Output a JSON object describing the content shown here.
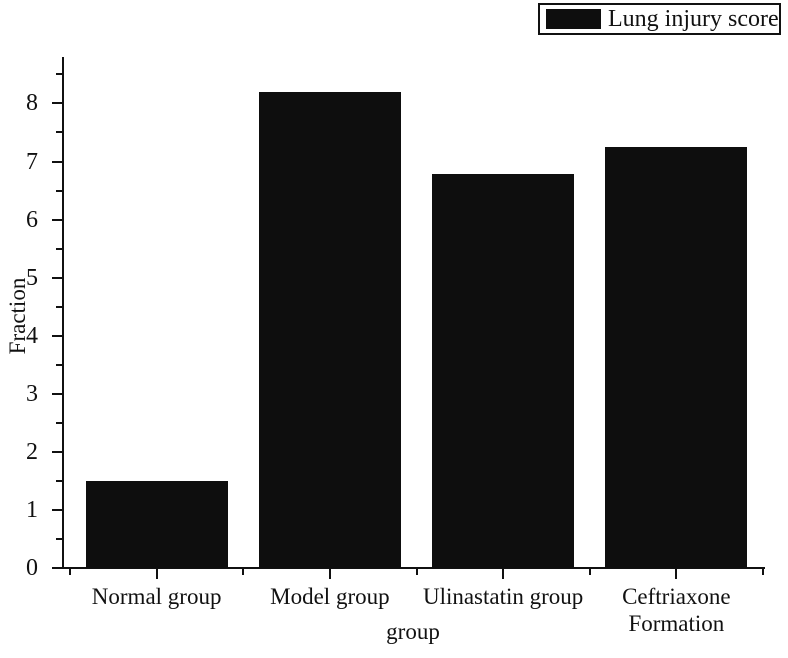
{
  "figure": {
    "background": "#ffffff",
    "ink_color": "#111111"
  },
  "legend": {
    "label": "Lung injury score",
    "swatch_color": "#0e0e0e"
  },
  "chart_data": {
    "type": "bar",
    "title": "",
    "categories": [
      "Normal group",
      "Model group",
      "Ulinastatin group",
      "Ceftriaxone Formation"
    ],
    "values": [
      1.5,
      8.2,
      6.78,
      7.25
    ],
    "series": [
      {
        "name": "Lung injury score",
        "values": [
          1.5,
          8.2,
          6.78,
          7.25
        ]
      }
    ],
    "xlabel": "group",
    "ylabel": "Fraction",
    "ylim": [
      0,
      8.8
    ],
    "yticks": [
      0,
      1,
      2,
      3,
      4,
      5,
      6,
      7,
      8
    ],
    "y_minor_tick_step": 0.5,
    "bar_color": "#0e0e0e",
    "grid": false,
    "legend_position": "top-right"
  }
}
